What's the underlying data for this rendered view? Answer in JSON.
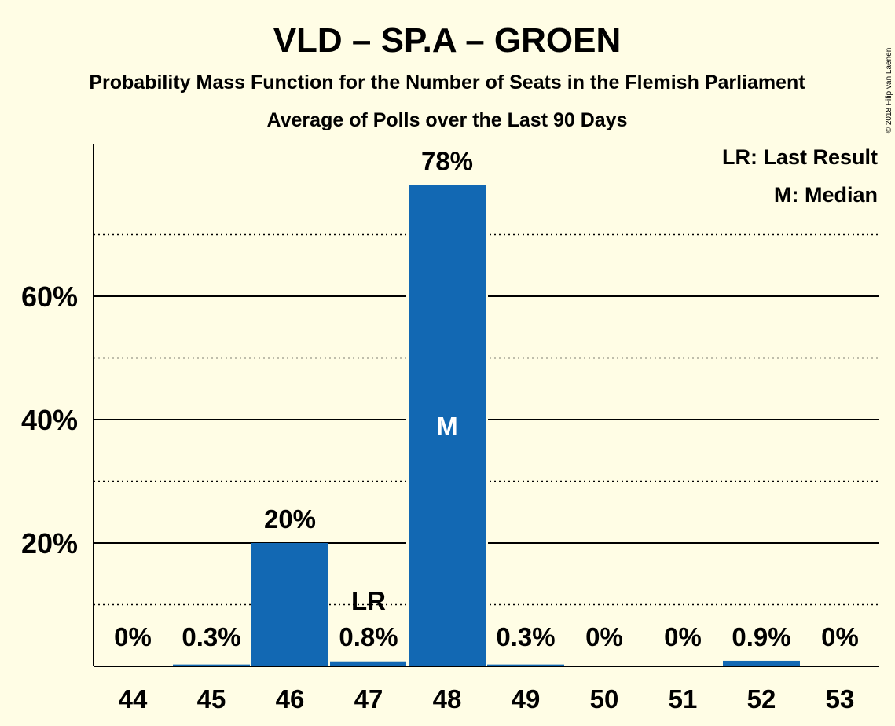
{
  "chart_data": {
    "type": "bar",
    "title": "VLD – SP.A – GROEN",
    "subtitle": "Probability Mass Function for the Number of Seats in the Flemish Parliament",
    "subtitle2": "Average of Polls over the Last 90 Days",
    "categories": [
      "44",
      "45",
      "46",
      "47",
      "48",
      "49",
      "50",
      "51",
      "52",
      "53"
    ],
    "values": [
      0,
      0.3,
      20,
      0.8,
      78,
      0.3,
      0,
      0,
      0.9,
      0
    ],
    "value_labels": [
      "0%",
      "0.3%",
      "20%",
      "0.8%",
      "78%",
      "0.3%",
      "0%",
      "0%",
      "0.9%",
      "0%"
    ],
    "ylim": [
      0,
      85
    ],
    "yticks": [
      20,
      40,
      60
    ],
    "ytick_labels": [
      "20%",
      "40%",
      "60%"
    ],
    "minor_gridlines": [
      10,
      30,
      50,
      70
    ],
    "last_result_category": "47",
    "last_result_marker": "LR",
    "median_category": "48",
    "median_marker": "M",
    "legend": [
      "LR: Last Result",
      "M: Median"
    ],
    "legend_position": "top-right",
    "bar_color": "#1268B3",
    "background_color": "#FFFDE5",
    "copyright": "© 2018 Filip van Laenen"
  }
}
